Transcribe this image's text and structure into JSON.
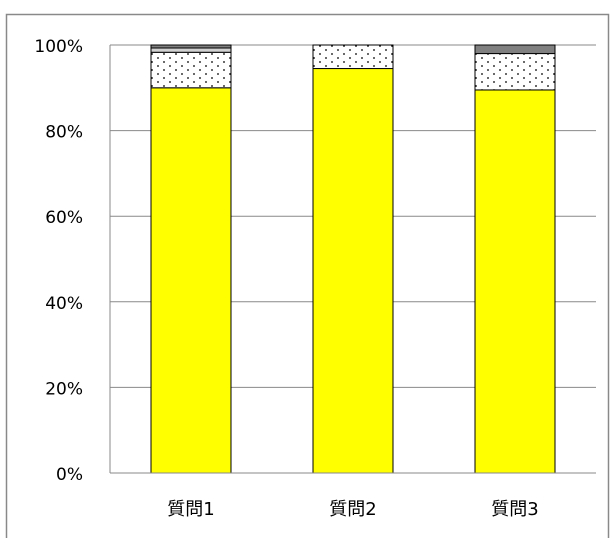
{
  "chart_data": {
    "type": "bar",
    "stacked": "percent",
    "categories": [
      "質問1",
      "質問2",
      "質問3"
    ],
    "series": [
      {
        "values": [
          90.0,
          94.5,
          89.5
        ],
        "color": "#ffff00",
        "pattern": "solid"
      },
      {
        "values": [
          8.3,
          5.5,
          8.5
        ],
        "color": "#ffffff",
        "pattern": "dotted"
      },
      {
        "values": [
          1.0,
          0.0,
          0.0
        ],
        "color": "#d0d0d0",
        "pattern": "solid"
      },
      {
        "values": [
          0.7,
          0.0,
          2.0
        ],
        "color": "#808080",
        "pattern": "solid"
      }
    ],
    "ylim": [
      0,
      100
    ],
    "yticks": [
      0,
      20,
      40,
      60,
      80,
      100
    ],
    "ytick_labels": [
      "0%",
      "20%",
      "40%",
      "60%",
      "80%",
      "100%"
    ],
    "grid": true,
    "legend": "none"
  }
}
